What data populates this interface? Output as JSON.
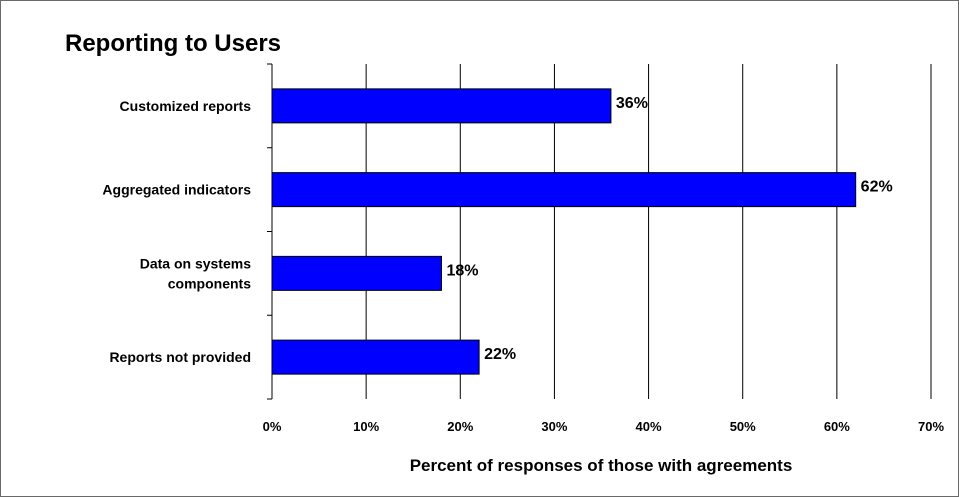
{
  "chart_data": {
    "type": "bar",
    "orientation": "horizontal",
    "title": "Reporting to Users",
    "xlabel": "Percent of responses of those with agreements",
    "ylabel": "",
    "categories": [
      [
        "Customized reports"
      ],
      [
        "Aggregated indicators"
      ],
      [
        "Data on systems",
        "components"
      ],
      [
        "Reports not provided"
      ]
    ],
    "values": [
      36,
      62,
      18,
      22
    ],
    "data_labels": [
      "36%",
      "62%",
      "18%",
      "22%"
    ],
    "xlim": [
      0,
      70
    ],
    "xticks": [
      0,
      10,
      20,
      30,
      40,
      50,
      60,
      70
    ],
    "xtick_labels": [
      "0%",
      "10%",
      "20%",
      "30%",
      "40%",
      "50%",
      "60%",
      "70%"
    ],
    "grid": "vertical",
    "legend": "none",
    "colors": {
      "bar": "#0000ff",
      "bar_edge": "#000000",
      "grid": "#000000"
    }
  }
}
